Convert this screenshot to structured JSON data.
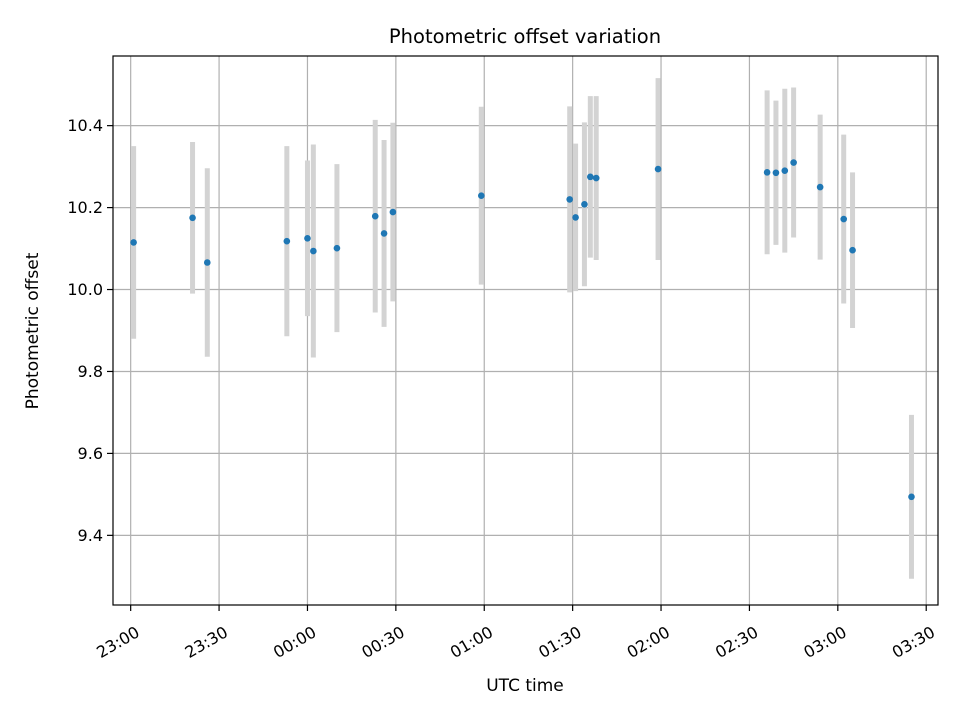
{
  "chart_data": {
    "type": "scatter",
    "title": "Photometric offset variation",
    "xlabel": "UTC time",
    "ylabel": "Photometric offset",
    "grid": true,
    "x_unit": "UTC time (HH:MM), points after 23:59 are on the following day",
    "xlim": [
      "22:54",
      "03:34"
    ],
    "ylim": [
      9.23,
      10.57
    ],
    "x_ticks": [
      "23:00",
      "23:30",
      "00:00",
      "00:30",
      "01:00",
      "01:30",
      "02:00",
      "02:30",
      "03:00",
      "03:30"
    ],
    "y_ticks": [
      9.4,
      9.6,
      9.8,
      10.0,
      10.2,
      10.4
    ],
    "y_tick_labels": [
      "9.4",
      "9.6",
      "9.8",
      "10.0",
      "10.2",
      "10.4"
    ],
    "marker_color": "#1f77b4",
    "errorbar_color": "#d3d3d3",
    "points": [
      {
        "x": "23:01",
        "y": 10.115,
        "err": 0.235
      },
      {
        "x": "23:21",
        "y": 10.175,
        "err": 0.185
      },
      {
        "x": "23:26",
        "y": 10.066,
        "err": 0.23
      },
      {
        "x": "23:53",
        "y": 10.118,
        "err": 0.232
      },
      {
        "x": "00:00",
        "y": 10.125,
        "err": 0.19
      },
      {
        "x": "00:02",
        "y": 10.094,
        "err": 0.26
      },
      {
        "x": "00:10",
        "y": 10.101,
        "err": 0.205
      },
      {
        "x": "00:23",
        "y": 10.179,
        "err": 0.235
      },
      {
        "x": "00:26",
        "y": 10.137,
        "err": 0.228
      },
      {
        "x": "00:29",
        "y": 10.189,
        "err": 0.218
      },
      {
        "x": "00:59",
        "y": 10.229,
        "err": 0.217
      },
      {
        "x": "01:29",
        "y": 10.22,
        "err": 0.227
      },
      {
        "x": "01:31",
        "y": 10.176,
        "err": 0.18
      },
      {
        "x": "01:34",
        "y": 10.208,
        "err": 0.2
      },
      {
        "x": "01:36",
        "y": 10.275,
        "err": 0.197
      },
      {
        "x": "01:38",
        "y": 10.272,
        "err": 0.2
      },
      {
        "x": "01:59",
        "y": 10.294,
        "err": 0.222
      },
      {
        "x": "02:36",
        "y": 10.286,
        "err": 0.2
      },
      {
        "x": "02:39",
        "y": 10.285,
        "err": 0.176
      },
      {
        "x": "02:42",
        "y": 10.29,
        "err": 0.2
      },
      {
        "x": "02:45",
        "y": 10.31,
        "err": 0.183
      },
      {
        "x": "02:54",
        "y": 10.25,
        "err": 0.177
      },
      {
        "x": "03:02",
        "y": 10.172,
        "err": 0.206
      },
      {
        "x": "03:05",
        "y": 10.096,
        "err": 0.19
      },
      {
        "x": "03:25",
        "y": 9.494,
        "err": 0.2
      }
    ]
  }
}
